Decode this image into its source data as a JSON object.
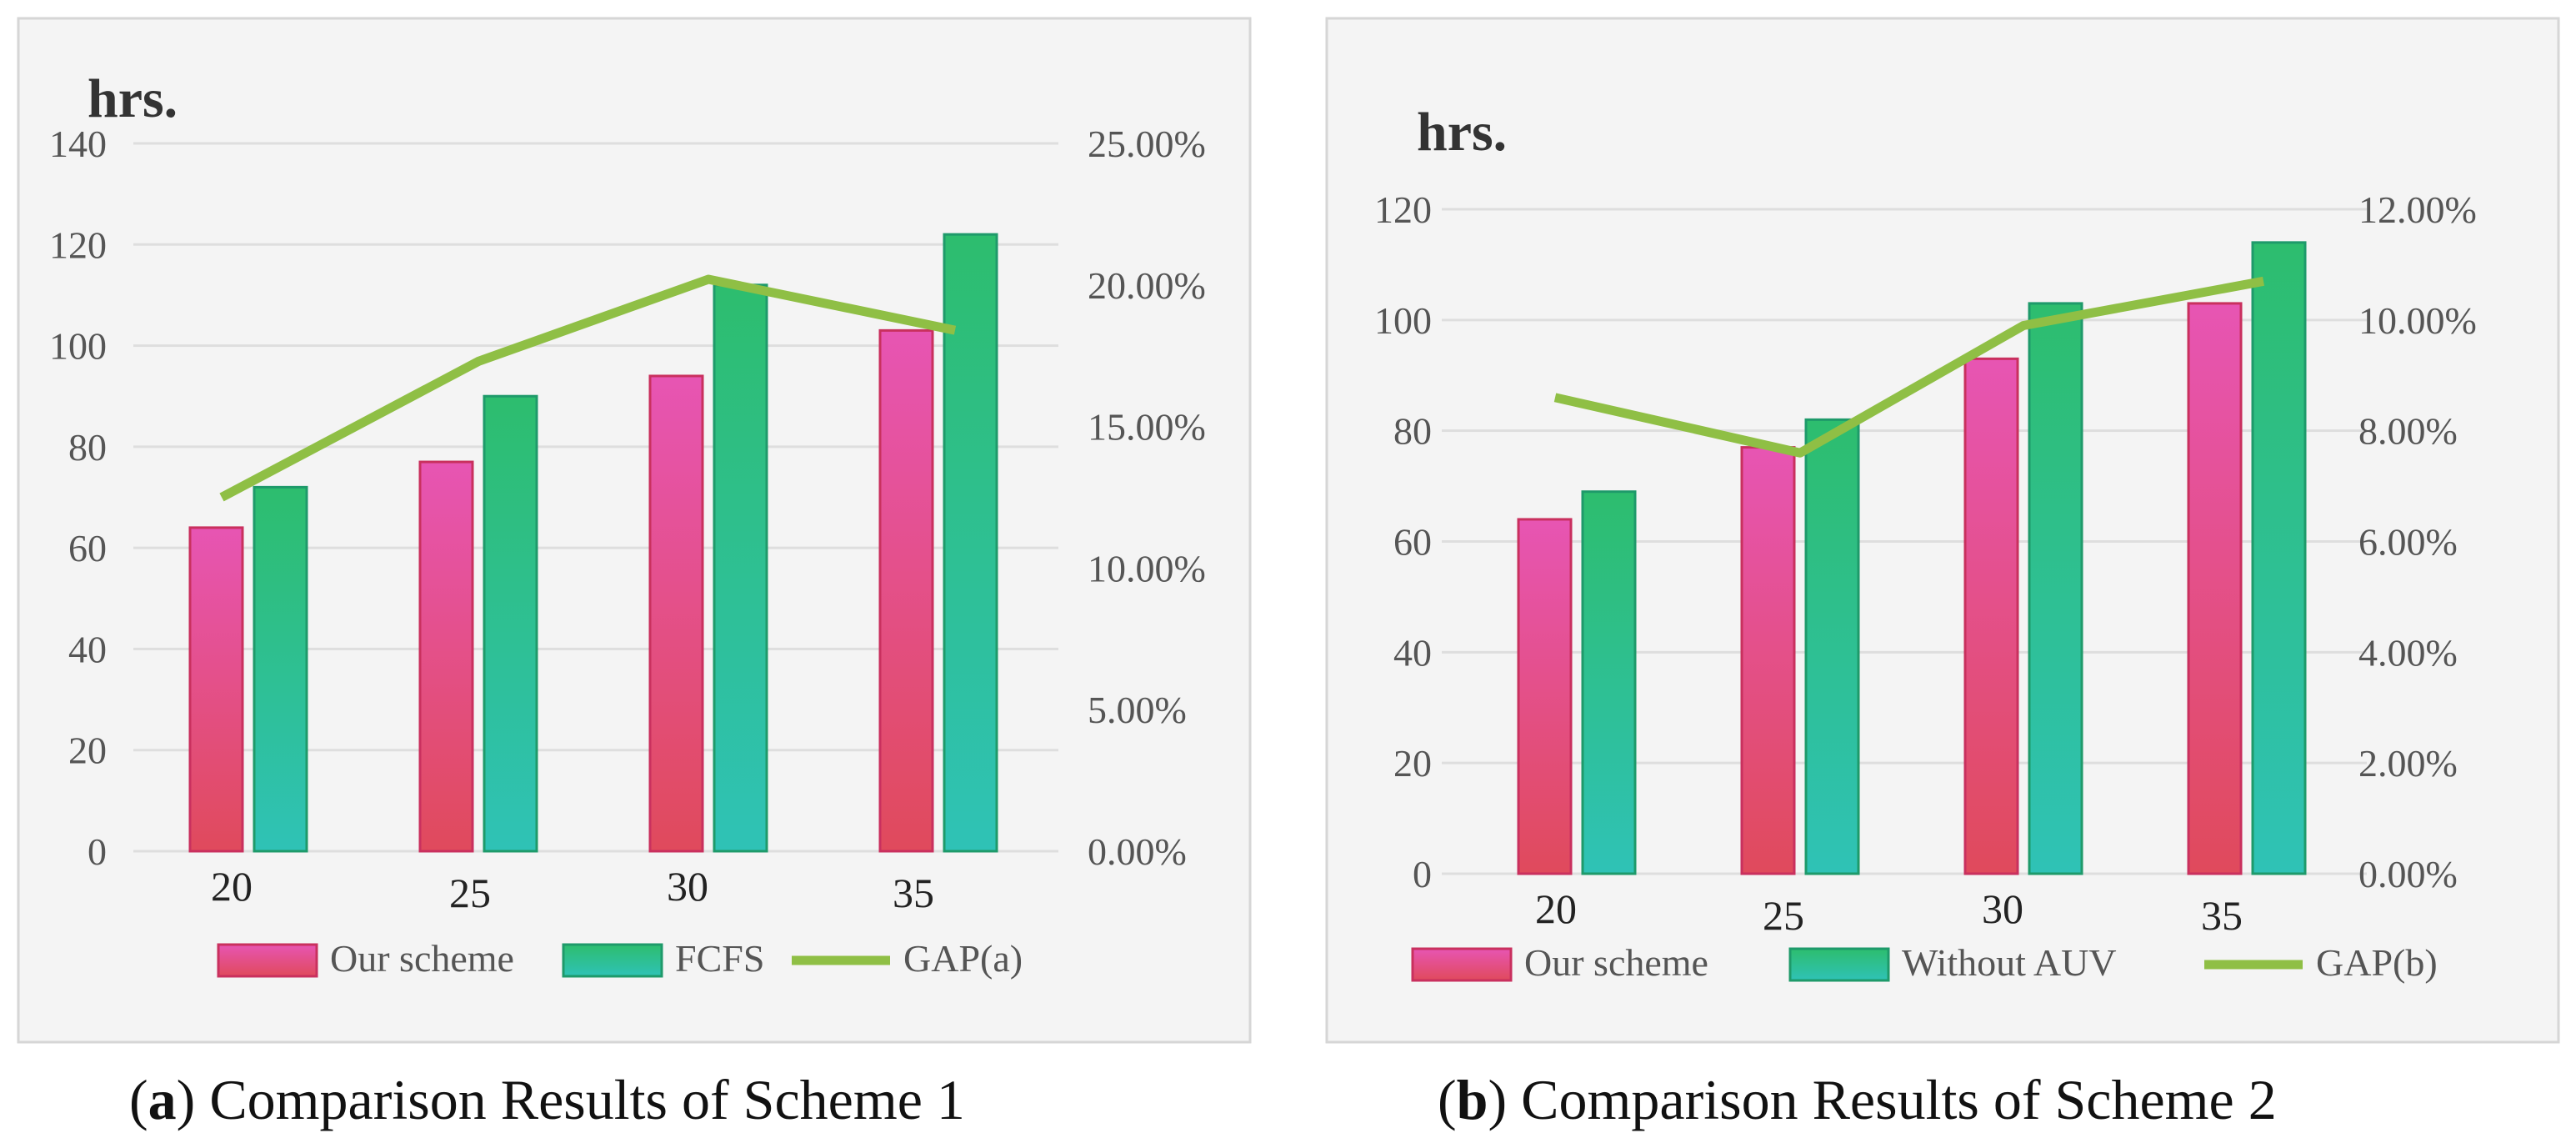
{
  "chart_data": [
    {
      "type": "bar",
      "caption_letter": "a",
      "caption_text": " Comparison Results of Scheme 1",
      "unit_label": "hrs.",
      "categories": [
        "20",
        "25",
        "30",
        "35"
      ],
      "series": [
        {
          "name": "Our scheme",
          "values": [
            64,
            77,
            94,
            103
          ],
          "axis": "left",
          "kind": "bar",
          "color_top": "#e755b3",
          "color_bottom": "#e04a5c"
        },
        {
          "name": "FCFS",
          "values": [
            72,
            90,
            112,
            122
          ],
          "axis": "left",
          "kind": "bar",
          "color_top": "#2dbd6e",
          "color_bottom": "#2fc2b6"
        },
        {
          "name": "GAP(a)",
          "values": [
            12.5,
            17.3,
            20.2,
            18.4
          ],
          "axis": "right",
          "kind": "line",
          "color": "#8fbf45"
        }
      ],
      "ylim": [
        0,
        140
      ],
      "yticks": [
        0,
        20,
        40,
        60,
        80,
        100,
        120,
        140
      ],
      "y2lim": [
        0,
        25
      ],
      "y2ticks": [
        "0.00%",
        "5.00%",
        "10.00%",
        "15.00%",
        "20.00%",
        "25.00%"
      ],
      "grid": true,
      "legend": "bottom"
    },
    {
      "type": "bar",
      "caption_letter": "b",
      "caption_text": " Comparison Results of Scheme 2",
      "unit_label": "hrs.",
      "categories": [
        "20",
        "25",
        "30",
        "35"
      ],
      "series": [
        {
          "name": "Our scheme",
          "values": [
            64,
            77,
            93,
            103
          ],
          "axis": "left",
          "kind": "bar",
          "color_top": "#e755b3",
          "color_bottom": "#e04a5c"
        },
        {
          "name": "Without AUV",
          "values": [
            69,
            82,
            103,
            114
          ],
          "axis": "left",
          "kind": "bar",
          "color_top": "#2dbd6e",
          "color_bottom": "#2fc2b6"
        },
        {
          "name": "GAP(b)",
          "values": [
            8.6,
            7.6,
            9.9,
            10.7
          ],
          "axis": "right",
          "kind": "line",
          "color": "#8fbf45"
        }
      ],
      "ylim": [
        0,
        120
      ],
      "yticks": [
        0,
        20,
        40,
        60,
        80,
        100,
        120
      ],
      "y2lim": [
        0,
        12
      ],
      "y2ticks": [
        "0.00%",
        "2.00%",
        "4.00%",
        "6.00%",
        "8.00%",
        "10.00%",
        "12.00%"
      ],
      "grid": true,
      "legend": "bottom"
    }
  ]
}
